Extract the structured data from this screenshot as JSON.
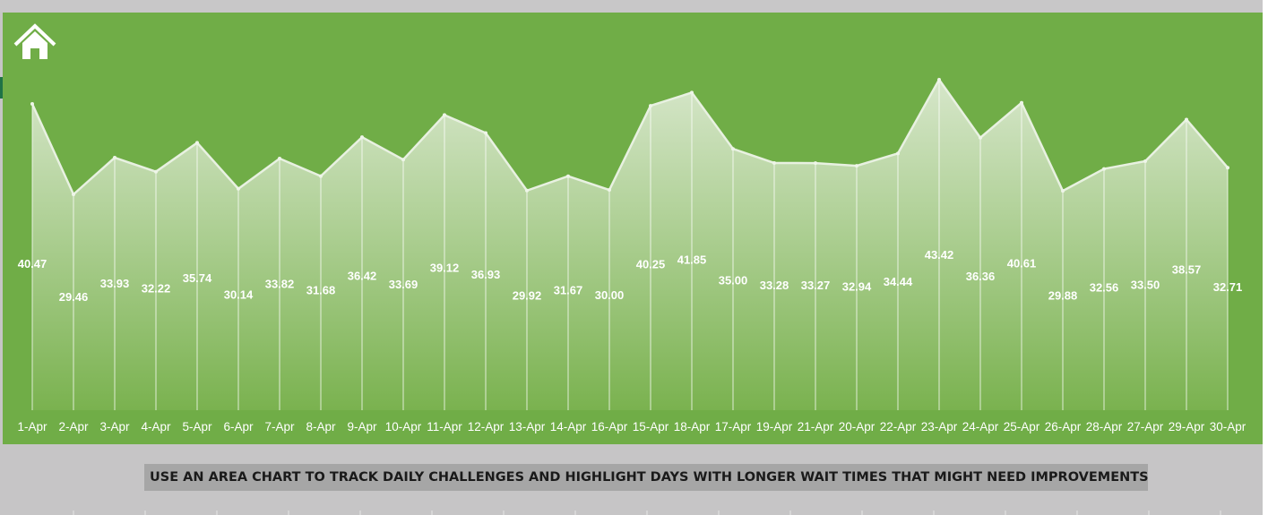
{
  "caption": "USE AN AREA CHART TO TRACK DAILY CHALLENGES AND HIGHLIGHT DAYS WITH LONGER WAIT TIMES THAT MIGHT NEED IMPROVEMENTS..",
  "icons": {
    "home": "home-icon"
  },
  "colors": {
    "panel": "#70ad47",
    "area_top": "#dbe9d0",
    "area_bottom": "#7ab24f",
    "label": "#ffffff",
    "background": "#c6c5c6",
    "caption_bg": "#a6a6a6"
  },
  "chart_data": {
    "type": "area",
    "title": "",
    "xlabel": "",
    "ylabel": "",
    "ylim": [
      0,
      45
    ],
    "grid": false,
    "legend": "none",
    "categories": [
      "1-Apr",
      "2-Apr",
      "3-Apr",
      "4-Apr",
      "5-Apr",
      "6-Apr",
      "7-Apr",
      "8-Apr",
      "9-Apr",
      "10-Apr",
      "11-Apr",
      "12-Apr",
      "13-Apr",
      "14-Apr",
      "16-Apr",
      "15-Apr",
      "18-Apr",
      "17-Apr",
      "19-Apr",
      "21-Apr",
      "20-Apr",
      "22-Apr",
      "23-Apr",
      "24-Apr",
      "25-Apr",
      "26-Apr",
      "28-Apr",
      "27-Apr",
      "29-Apr",
      "30-Apr"
    ],
    "values": [
      40.47,
      29.46,
      33.93,
      32.22,
      35.74,
      30.14,
      33.82,
      31.68,
      36.42,
      33.69,
      39.12,
      36.93,
      29.92,
      31.67,
      30.0,
      40.25,
      41.85,
      35.0,
      33.28,
      33.27,
      32.94,
      34.44,
      43.42,
      36.36,
      40.61,
      29.88,
      32.56,
      33.5,
      38.57,
      32.71
    ],
    "labels": [
      "40.47",
      "29.46",
      "33.93",
      "32.22",
      "35.74",
      "30.14",
      "33.82",
      "31.68",
      "36.42",
      "33.69",
      "39.12",
      "36.93",
      "29.92",
      "31.67",
      "30.00",
      "40.25",
      "41.85",
      "35.00",
      "33.28",
      "33.27",
      "32.94",
      "34.44",
      "43.42",
      "36.36",
      "40.61",
      "29.88",
      "32.56",
      "33.50",
      "38.57",
      "32.71"
    ]
  }
}
